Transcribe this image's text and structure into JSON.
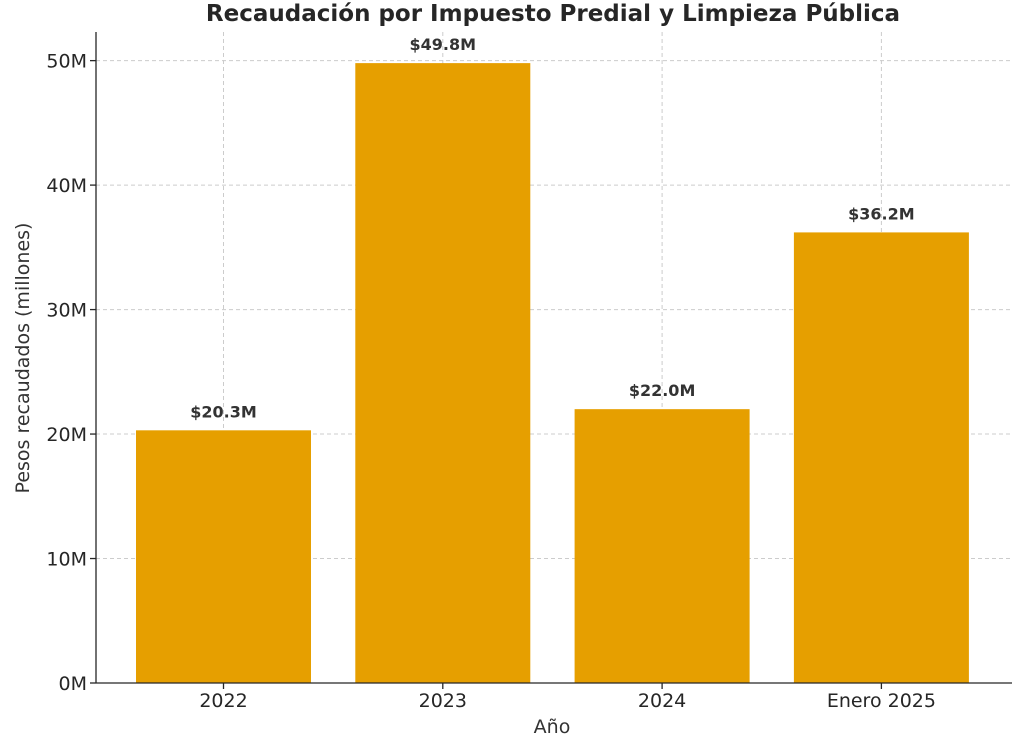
{
  "chart_data": {
    "type": "bar",
    "title": "Recaudación por Impuesto Predial y Limpieza Pública",
    "xlabel": "Año",
    "ylabel": "Pesos recaudados (millones)",
    "categories": [
      "2022",
      "2023",
      "2024",
      "Enero 2025"
    ],
    "values": [
      20.3,
      49.8,
      22.0,
      36.2
    ],
    "data_labels": [
      "$20.3M",
      "$49.8M",
      "$22.0M",
      "$36.2M"
    ],
    "yticks": [
      0,
      10,
      20,
      30,
      40,
      50
    ],
    "ytick_labels": [
      "0M",
      "10M",
      "20M",
      "30M",
      "40M",
      "50M"
    ],
    "ylim": [
      0,
      52.3
    ],
    "grid": true,
    "bar_color": "#E69F00"
  }
}
